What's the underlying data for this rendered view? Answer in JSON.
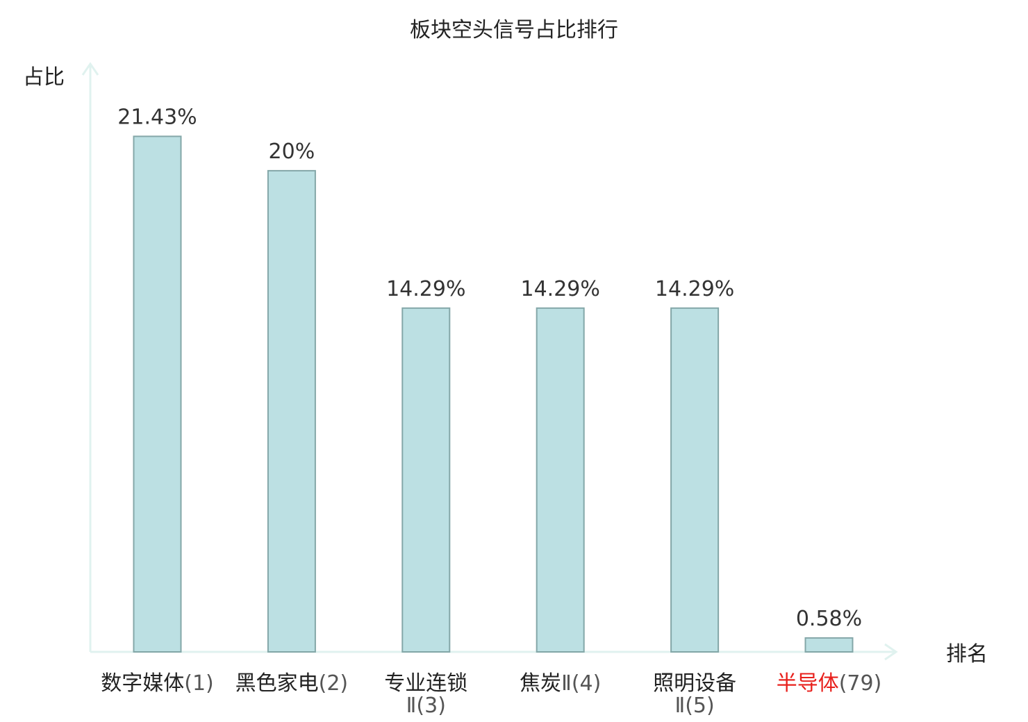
{
  "chart_data": {
    "type": "bar",
    "title": "板块空头信号占比排行",
    "ylabel": "占比",
    "xlabel": "排名",
    "ylim": [
      0,
      24.5
    ],
    "grid": false,
    "categories": [
      {
        "name": "数字媒体",
        "rank": "(1)",
        "value": 21.43,
        "label": "21.43%",
        "highlight": false
      },
      {
        "name": "黑色家电",
        "rank": "(2)",
        "value": 20,
        "label": "20%",
        "highlight": false
      },
      {
        "name": "专业连锁",
        "rank": "Ⅱ(3)",
        "value": 14.29,
        "label": "14.29%",
        "highlight": false
      },
      {
        "name": "焦炭",
        "rank": "Ⅱ(4)",
        "value": 14.29,
        "label": "14.29%",
        "highlight": false
      },
      {
        "name": "照明设备",
        "rank": "Ⅱ(5)",
        "value": 14.29,
        "label": "14.29%",
        "highlight": false
      },
      {
        "name": "半导体",
        "rank": "(79)",
        "value": 0.58,
        "label": "0.58%",
        "highlight": true
      }
    ],
    "colors": {
      "bar_fill": "#bce0e3",
      "bar_stroke": "#84a7a8",
      "axis": "#e0f2ef",
      "highlight": "#e8201c"
    }
  }
}
